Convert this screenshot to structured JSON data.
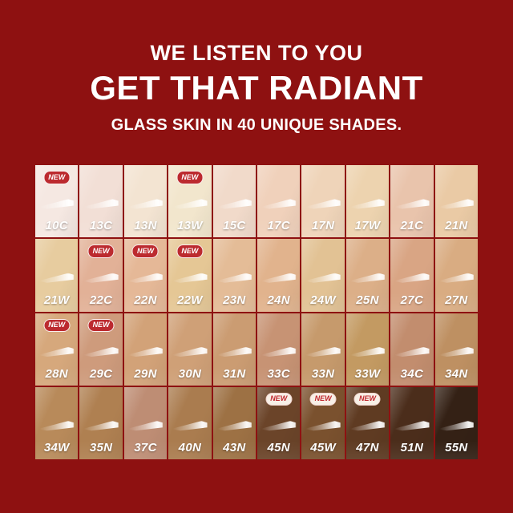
{
  "page": {
    "background_color": "#8E1111",
    "text_color": "#FFFFFF"
  },
  "header": {
    "line1": "WE LISTEN TO YOU",
    "line2": "GET THAT RADIANT",
    "line3": "GLASS SKIN IN 40 UNIQUE SHADES."
  },
  "badge": {
    "label": "NEW",
    "red_style": {
      "background": "#BC2A2F",
      "text": "#FFFFFF",
      "border": "#FFFFFF"
    },
    "light_style": {
      "background": "#F8F0E7",
      "text": "#C0272D"
    }
  },
  "grid": {
    "columns": 10,
    "rows": 4,
    "total_shades": 40,
    "shades": [
      {
        "code": "10C",
        "color": "#F5E8E2",
        "new": true,
        "badge_style": "red"
      },
      {
        "code": "13C",
        "color": "#F2DFD6",
        "new": false
      },
      {
        "code": "13N",
        "color": "#F3E4D2",
        "new": false
      },
      {
        "code": "13W",
        "color": "#F2E6CD",
        "new": true,
        "badge_style": "red"
      },
      {
        "code": "15C",
        "color": "#F1DACA",
        "new": false
      },
      {
        "code": "17C",
        "color": "#F0D1BB",
        "new": false
      },
      {
        "code": "17N",
        "color": "#EFD4B9",
        "new": false
      },
      {
        "code": "17W",
        "color": "#EDD3AF",
        "new": false
      },
      {
        "code": "21C",
        "color": "#E9C4AC",
        "new": false
      },
      {
        "code": "21N",
        "color": "#EACAA5",
        "new": false
      },
      {
        "code": "21W",
        "color": "#E7CC9F",
        "new": false
      },
      {
        "code": "22C",
        "color": "#E2B197",
        "new": true,
        "badge_style": "red"
      },
      {
        "code": "22N",
        "color": "#E5B897",
        "new": true,
        "badge_style": "red"
      },
      {
        "code": "22W",
        "color": "#E5C795",
        "new": true,
        "badge_style": "red"
      },
      {
        "code": "23N",
        "color": "#E4BC97",
        "new": false
      },
      {
        "code": "24N",
        "color": "#E1B38D",
        "new": false
      },
      {
        "code": "24W",
        "color": "#E2C294",
        "new": false
      },
      {
        "code": "25N",
        "color": "#DCAF88",
        "new": false
      },
      {
        "code": "27C",
        "color": "#D9A584",
        "new": false
      },
      {
        "code": "27N",
        "color": "#D9AC82",
        "new": false
      },
      {
        "code": "28N",
        "color": "#D6A87C",
        "new": true,
        "badge_style": "red"
      },
      {
        "code": "29C",
        "color": "#CE9B7C",
        "new": true,
        "badge_style": "red"
      },
      {
        "code": "29N",
        "color": "#D2A278",
        "new": false
      },
      {
        "code": "30N",
        "color": "#CFA077",
        "new": false
      },
      {
        "code": "31N",
        "color": "#CB9C72",
        "new": false
      },
      {
        "code": "33C",
        "color": "#C79374",
        "new": false
      },
      {
        "code": "33N",
        "color": "#C69A6C",
        "new": false
      },
      {
        "code": "33W",
        "color": "#C39A62",
        "new": false
      },
      {
        "code": "34C",
        "color": "#C28D6E",
        "new": false
      },
      {
        "code": "34N",
        "color": "#BE9062",
        "new": false
      },
      {
        "code": "34W",
        "color": "#B88A5A",
        "new": false
      },
      {
        "code": "35N",
        "color": "#AF8051",
        "new": false
      },
      {
        "code": "37C",
        "color": "#BE8D74",
        "new": false
      },
      {
        "code": "40N",
        "color": "#AA7C4F",
        "new": false
      },
      {
        "code": "43N",
        "color": "#9D7144",
        "new": false
      },
      {
        "code": "45N",
        "color": "#6B4429",
        "new": true,
        "badge_style": "light"
      },
      {
        "code": "45W",
        "color": "#7A512E",
        "new": true,
        "badge_style": "light"
      },
      {
        "code": "47N",
        "color": "#5F3B22",
        "new": true,
        "badge_style": "light"
      },
      {
        "code": "51N",
        "color": "#4B2D1B",
        "new": false
      },
      {
        "code": "55N",
        "color": "#342115",
        "new": false
      }
    ]
  }
}
